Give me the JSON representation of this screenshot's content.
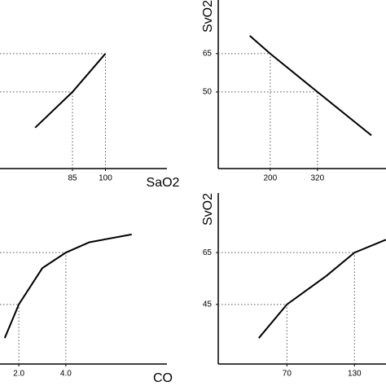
{
  "chart_data": [
    {
      "type": "line",
      "xlabel": "SaO2",
      "color": "#000000",
      "x": [
        68,
        85,
        100
      ],
      "values": [
        36,
        50,
        65
      ],
      "xlim": [
        52,
        128
      ],
      "ylim": [
        20,
        86
      ],
      "xticks": [
        85,
        100
      ]
    },
    {
      "type": "line",
      "ylabel": "SvO2",
      "color": "#000000",
      "x": [
        148,
        200,
        320,
        457
      ],
      "values": [
        72,
        65,
        50,
        33
      ],
      "xlim": [
        68,
        494
      ],
      "ylim": [
        20,
        86
      ],
      "xticks": [
        200,
        320
      ],
      "yticks": [
        65,
        50
      ]
    },
    {
      "type": "line",
      "xlabel": "CO",
      "color": "#000000",
      "x": [
        1.4,
        2,
        3,
        4,
        5,
        6.8
      ],
      "values": [
        32,
        45,
        59,
        65,
        69,
        72
      ],
      "xlim": [
        1.2,
        8.3
      ],
      "ylim": [
        22,
        88
      ],
      "xticks": [
        {
          "value": 2,
          "label": "2.0"
        },
        {
          "value": 4,
          "label": "4.0"
        }
      ]
    },
    {
      "type": "line",
      "ylabel": "SvO2",
      "color": "#000000",
      "x": [
        45,
        70,
        105,
        130,
        158
      ],
      "values": [
        32,
        45,
        56,
        65,
        70
      ],
      "xlim": [
        9,
        158
      ],
      "ylim": [
        22,
        88
      ],
      "xticks": [
        70,
        130
      ],
      "yticks": [
        65,
        45
      ]
    }
  ]
}
